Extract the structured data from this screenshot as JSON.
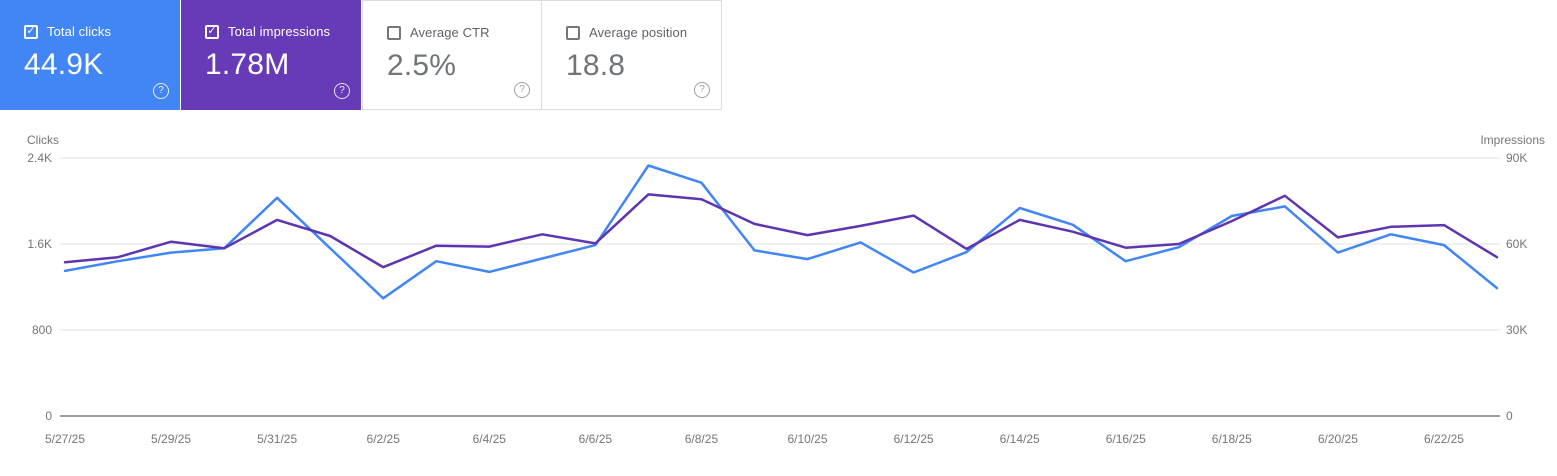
{
  "cards": [
    {
      "label": "Total clicks",
      "value": "44.9K",
      "checked": true,
      "bg": "#4285f4",
      "help_glyph": "?"
    },
    {
      "label": "Total impressions",
      "value": "1.78M",
      "checked": true,
      "bg": "#673ab7",
      "help_glyph": "?"
    },
    {
      "label": "Average CTR",
      "value": "2.5%",
      "checked": false,
      "bg": "#ffffff",
      "help_glyph": "?"
    },
    {
      "label": "Average position",
      "value": "18.8",
      "checked": false,
      "bg": "#ffffff",
      "help_glyph": "?"
    }
  ],
  "checkmark_glyph": "✓",
  "chart_data": {
    "type": "line",
    "x": [
      "5/27/25",
      "5/28/25",
      "5/29/25",
      "5/30/25",
      "5/31/25",
      "6/1/25",
      "6/2/25",
      "6/3/25",
      "6/4/25",
      "6/5/25",
      "6/6/25",
      "6/7/25",
      "6/8/25",
      "6/9/25",
      "6/10/25",
      "6/11/25",
      "6/12/25",
      "6/13/25",
      "6/14/25",
      "6/15/25",
      "6/16/25",
      "6/17/25",
      "6/18/25",
      "6/19/25",
      "6/20/25",
      "6/21/25",
      "6/22/25",
      "6/23/25"
    ],
    "x_tick_labels": [
      "5/27/25",
      "5/29/25",
      "5/31/25",
      "6/2/25",
      "6/4/25",
      "6/6/25",
      "6/8/25",
      "6/10/25",
      "6/12/25",
      "6/14/25",
      "6/16/25",
      "6/18/25",
      "6/20/25",
      "6/22/25"
    ],
    "series": [
      {
        "name": "Clicks",
        "color": "#4285f4",
        "axis": "left",
        "values": [
          1350,
          1440,
          1520,
          1560,
          2030,
          1560,
          1095,
          1440,
          1340,
          1465,
          1590,
          2330,
          2170,
          1540,
          1460,
          1615,
          1335,
          1525,
          1935,
          1780,
          1440,
          1570,
          1860,
          1950,
          1520,
          1690,
          1590,
          1190
        ]
      },
      {
        "name": "Impressions",
        "color": "#5e35b1",
        "axis": "right",
        "values": [
          53600,
          55400,
          60800,
          58500,
          68400,
          62800,
          51900,
          59400,
          59100,
          63400,
          60200,
          77300,
          75600,
          67000,
          63100,
          66300,
          69900,
          58300,
          68400,
          64300,
          58700,
          60000,
          68000,
          76800,
          62300,
          66000,
          66600,
          55400
        ]
      }
    ],
    "left_axis": {
      "title": "Clicks",
      "ticks": [
        "0",
        "800",
        "1.6K",
        "2.4K"
      ],
      "max": 2400
    },
    "right_axis": {
      "title": "Impressions",
      "ticks": [
        "0",
        "30K",
        "60K",
        "90K"
      ],
      "max": 90000
    },
    "grid": true,
    "legend": "none",
    "colors": {
      "gridline": "#ececec",
      "baseline": "#9aa0a6",
      "axis_text": "#757575"
    }
  }
}
